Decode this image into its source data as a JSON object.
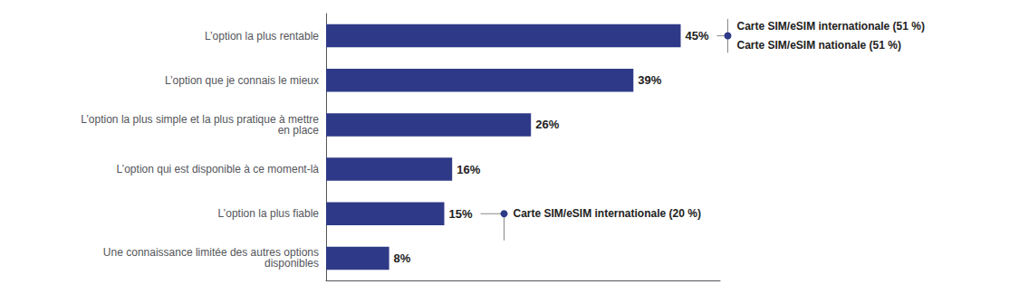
{
  "chart_data": {
    "type": "bar",
    "orientation": "horizontal",
    "categories": [
      "L’option la plus rentable",
      "L’option que je connais le mieux",
      "L’option la plus simple et la plus pratique à mettre\nen place",
      "L’option qui est disponible à ce moment-là",
      "L’option la plus fiable",
      "Une connaissance limitée des autres options\ndisponibles"
    ],
    "values": [
      45,
      39,
      26,
      16,
      15,
      8
    ],
    "value_labels": [
      "45%",
      "39%",
      "26%",
      "16%",
      "15%",
      "8%"
    ],
    "data_labels": true,
    "color": "#2E3A87",
    "xlim": [
      0,
      50
    ],
    "grid": false,
    "tick_labels": "y",
    "annotations": [
      {
        "category": "L’option la plus rentable",
        "lines": [
          "Carte SIM/eSIM internationale (51 %)",
          "Carte SIM/eSIM nationale (51 %)"
        ]
      },
      {
        "category": "L’option la plus fiable",
        "lines": [
          "Carte SIM/eSIM internationale (20 %)"
        ]
      }
    ]
  }
}
